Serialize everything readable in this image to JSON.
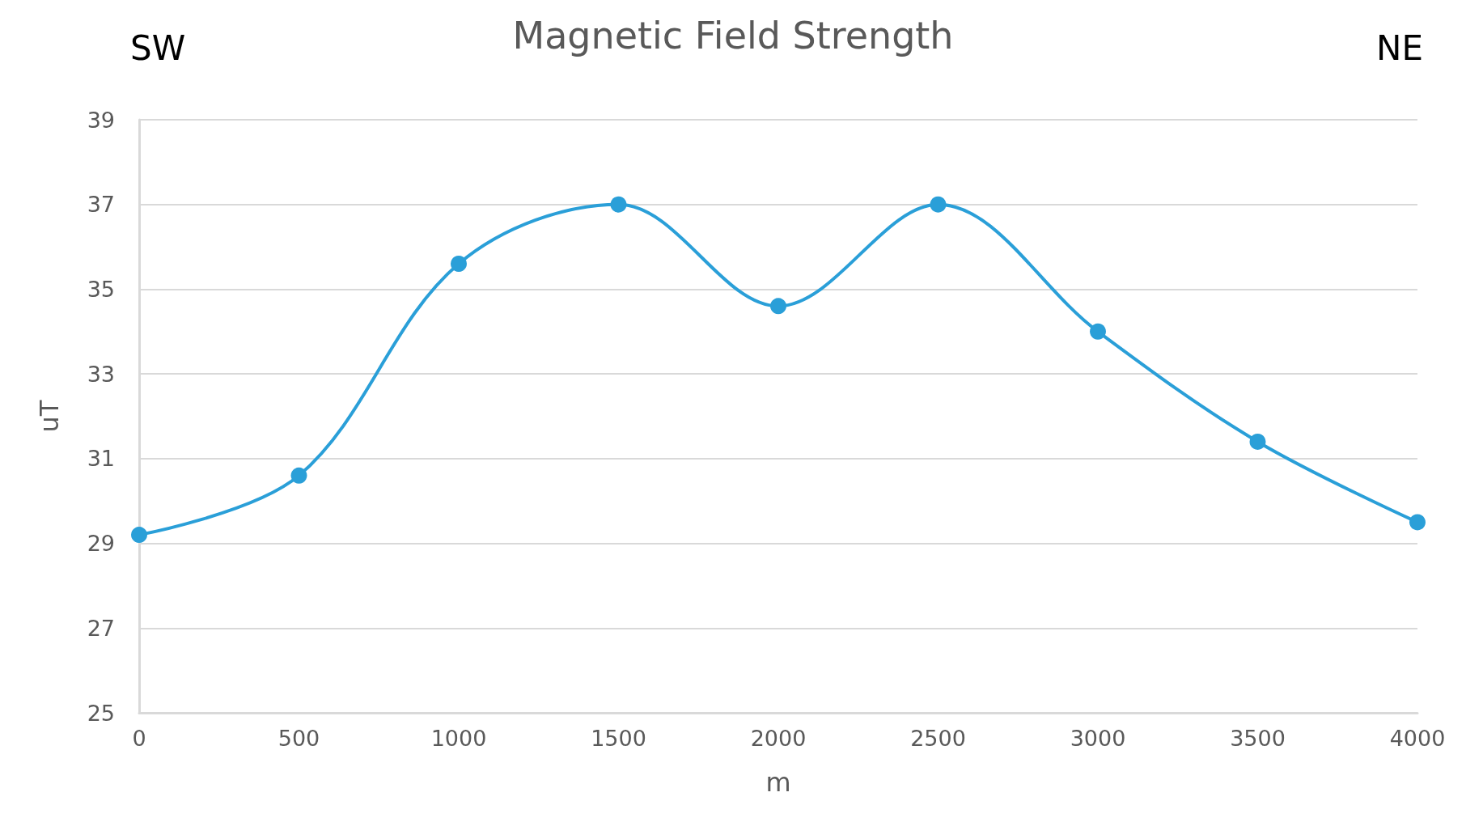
{
  "chart_data": {
    "type": "line",
    "title": "Magnetic Field Strength",
    "xlabel": "m",
    "ylabel": "uT",
    "annotations": [
      "SW",
      "NE"
    ],
    "x": [
      0,
      500,
      1000,
      1500,
      2000,
      2500,
      3000,
      3500,
      4000
    ],
    "series": [
      {
        "color": "#2a9fd8",
        "values": [
          29.2,
          30.6,
          35.6,
          37.0,
          34.6,
          37.0,
          34.0,
          31.4,
          29.5
        ]
      }
    ],
    "xlim": [
      0,
      4000
    ],
    "xticks": [
      0,
      500,
      1000,
      1500,
      2000,
      2500,
      3000,
      3500,
      4000
    ],
    "ylim": [
      25,
      39
    ],
    "yticks": [
      25,
      27,
      29,
      31,
      33,
      35,
      37,
      39
    ],
    "grid": "y",
    "marker": "circle",
    "line_style": "solid"
  }
}
